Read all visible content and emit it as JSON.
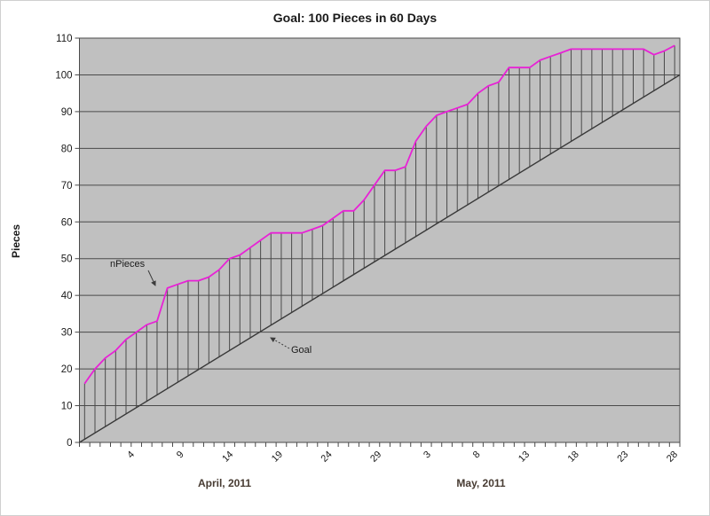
{
  "chart_data": {
    "type": "line",
    "title": "Goal: 100 Pieces in 60 Days",
    "ylabel": "Pieces",
    "ylim": [
      0,
      110
    ],
    "ytick_labels": [
      "0",
      "10",
      "20",
      "30",
      "40",
      "50",
      "60",
      "70",
      "80",
      "90",
      "100",
      "110"
    ],
    "x_axis": {
      "tick_labels": [
        "4",
        "9",
        "14",
        "19",
        "24",
        "29",
        "3",
        "8",
        "13",
        "18",
        "23",
        "28"
      ],
      "month_labels": [
        "April, 2011",
        "May, 2011"
      ],
      "minor_tick_interval_days": 1,
      "label_interval_days": 5
    },
    "legend_position": "none",
    "grid": "horizontal",
    "plot_bg": "#c0c0c0",
    "grid_color": "#4a4a4a",
    "series": [
      {
        "name": "nPieces",
        "color": "#e821d6",
        "x_day_index_start": 1,
        "values": [
          16,
          20,
          23,
          25,
          28,
          30,
          32,
          33,
          42,
          43,
          44,
          44,
          45,
          47,
          50,
          51,
          53,
          55,
          57,
          57,
          57,
          57,
          58,
          59,
          61,
          63,
          63,
          66,
          70,
          74,
          74,
          75,
          82,
          86,
          89,
          90,
          91,
          92,
          95,
          97,
          98,
          102,
          102,
          102,
          104,
          105,
          106,
          107,
          107,
          107,
          107,
          107,
          107,
          107,
          107,
          105.5,
          106.5,
          108
        ]
      },
      {
        "name": "Goal",
        "color": "#383838",
        "start_value": 0,
        "end_value": 100
      }
    ],
    "drop_lines": {
      "show": true,
      "color": "#4a4a4a"
    },
    "annotations": [
      {
        "label": "nPieces",
        "arrow_style": "solid"
      },
      {
        "label": "Goal",
        "arrow_style": "dotted"
      }
    ]
  }
}
